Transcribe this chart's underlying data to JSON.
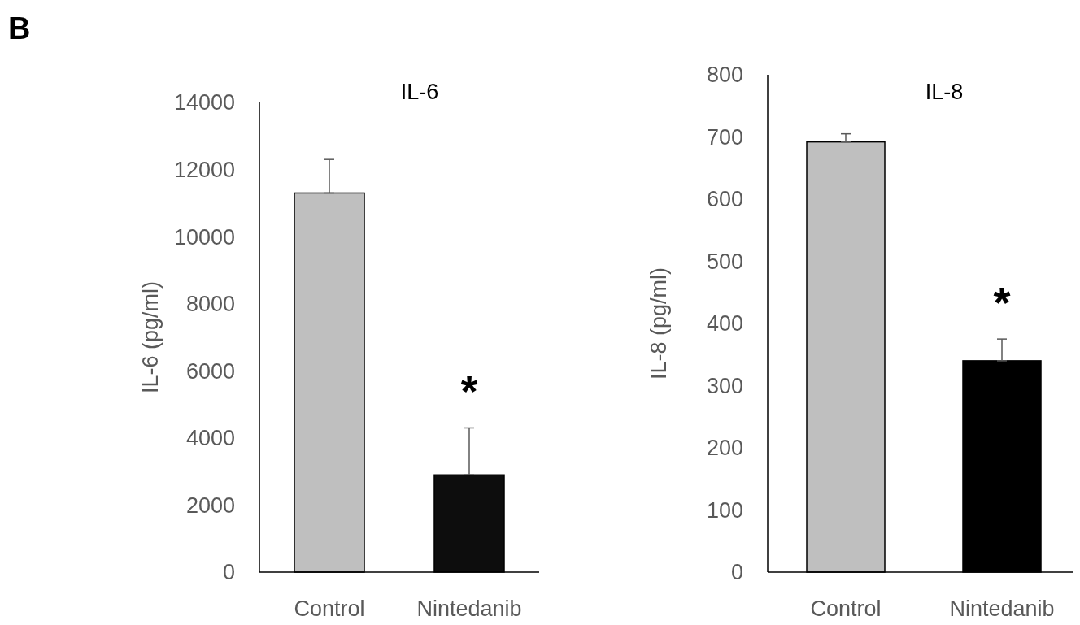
{
  "chart_data": [
    {
      "type": "bar",
      "title": "IL-6",
      "ylabel": "IL-6 (pg/ml)",
      "categories": [
        "Control",
        "Nintedanib"
      ],
      "values": [
        11300,
        2900
      ],
      "colors": [
        "#bfbfbf",
        "#0d0d0d"
      ],
      "errors": [
        [
          11300,
          12300
        ],
        [
          2900,
          4300
        ]
      ],
      "ylim": [
        0,
        14000
      ],
      "yticks": [
        0,
        2000,
        4000,
        6000,
        8000,
        10000,
        12000,
        14000
      ],
      "grid": false,
      "annotations": [
        "B",
        "*"
      ]
    },
    {
      "type": "bar",
      "title": "IL-8",
      "ylabel": "IL-8 (pg/ml)",
      "categories": [
        "Control",
        "Nintedanib"
      ],
      "values": [
        692,
        340
      ],
      "colors": [
        "#bfbfbf",
        "#000000"
      ],
      "errors": [
        [
          692,
          705
        ],
        [
          340,
          375
        ]
      ],
      "ylim": [
        0,
        800
      ],
      "yticks": [
        0,
        100,
        200,
        300,
        400,
        500,
        600,
        700,
        800
      ],
      "grid": false,
      "annotations": [
        "*"
      ]
    }
  ]
}
